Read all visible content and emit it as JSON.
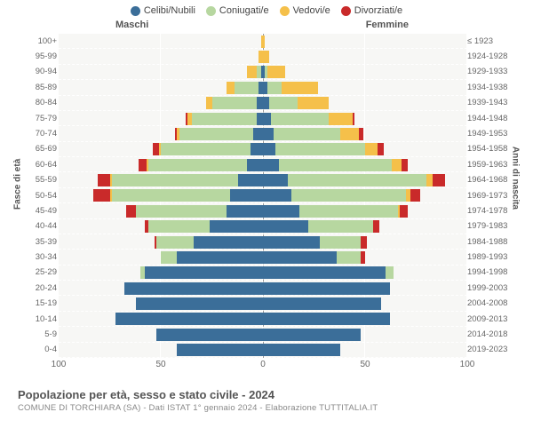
{
  "legend": [
    {
      "label": "Celibi/Nubili",
      "color": "#3b6e99"
    },
    {
      "label": "Coniugati/e",
      "color": "#b7d7a0"
    },
    {
      "label": "Vedovi/e",
      "color": "#f5c04a"
    },
    {
      "label": "Divorziati/e",
      "color": "#c92a2a"
    }
  ],
  "headers": {
    "male": "Maschi",
    "female": "Femmine"
  },
  "axes": {
    "left_title": "Fasce di età",
    "right_title": "Anni di nascita",
    "x_max": 100,
    "x_ticks": [
      100,
      50,
      0,
      50,
      100
    ]
  },
  "rows": [
    {
      "age": "100+",
      "birth": "≤ 1923",
      "m": [
        0,
        0,
        1,
        0
      ],
      "f": [
        0,
        0,
        1,
        0
      ]
    },
    {
      "age": "95-99",
      "birth": "1924-1928",
      "m": [
        0,
        0,
        2,
        0
      ],
      "f": [
        0,
        0,
        3,
        0
      ]
    },
    {
      "age": "90-94",
      "birth": "1929-1933",
      "m": [
        1,
        2,
        5,
        0
      ],
      "f": [
        1,
        1,
        9,
        0
      ]
    },
    {
      "age": "85-89",
      "birth": "1934-1938",
      "m": [
        2,
        12,
        4,
        0
      ],
      "f": [
        2,
        7,
        18,
        0
      ]
    },
    {
      "age": "80-84",
      "birth": "1939-1943",
      "m": [
        3,
        22,
        3,
        0
      ],
      "f": [
        3,
        14,
        15,
        0
      ]
    },
    {
      "age": "75-79",
      "birth": "1944-1948",
      "m": [
        3,
        32,
        2,
        1
      ],
      "f": [
        4,
        28,
        12,
        1
      ]
    },
    {
      "age": "70-74",
      "birth": "1949-1953",
      "m": [
        5,
        36,
        1,
        1
      ],
      "f": [
        5,
        33,
        9,
        2
      ]
    },
    {
      "age": "65-69",
      "birth": "1954-1958",
      "m": [
        6,
        44,
        1,
        3
      ],
      "f": [
        6,
        44,
        6,
        3
      ]
    },
    {
      "age": "60-64",
      "birth": "1959-1963",
      "m": [
        8,
        48,
        1,
        4
      ],
      "f": [
        8,
        55,
        5,
        3
      ]
    },
    {
      "age": "55-59",
      "birth": "1964-1968",
      "m": [
        12,
        62,
        1,
        6
      ],
      "f": [
        12,
        68,
        3,
        6
      ]
    },
    {
      "age": "50-54",
      "birth": "1969-1973",
      "m": [
        16,
        58,
        1,
        8
      ],
      "f": [
        14,
        56,
        2,
        5
      ]
    },
    {
      "age": "45-49",
      "birth": "1974-1978",
      "m": [
        18,
        44,
        0,
        5
      ],
      "f": [
        18,
        48,
        1,
        4
      ]
    },
    {
      "age": "40-44",
      "birth": "1979-1983",
      "m": [
        26,
        30,
        0,
        2
      ],
      "f": [
        22,
        32,
        0,
        3
      ]
    },
    {
      "age": "35-39",
      "birth": "1984-1988",
      "m": [
        34,
        18,
        0,
        1
      ],
      "f": [
        28,
        20,
        0,
        3
      ]
    },
    {
      "age": "30-34",
      "birth": "1989-1993",
      "m": [
        42,
        8,
        0,
        0
      ],
      "f": [
        36,
        12,
        0,
        2
      ]
    },
    {
      "age": "25-29",
      "birth": "1994-1998",
      "m": [
        58,
        2,
        0,
        0
      ],
      "f": [
        60,
        4,
        0,
        0
      ]
    },
    {
      "age": "20-24",
      "birth": "1999-2003",
      "m": [
        68,
        0,
        0,
        0
      ],
      "f": [
        62,
        0,
        0,
        0
      ]
    },
    {
      "age": "15-19",
      "birth": "2004-2008",
      "m": [
        62,
        0,
        0,
        0
      ],
      "f": [
        58,
        0,
        0,
        0
      ]
    },
    {
      "age": "10-14",
      "birth": "2009-2013",
      "m": [
        72,
        0,
        0,
        0
      ],
      "f": [
        62,
        0,
        0,
        0
      ]
    },
    {
      "age": "5-9",
      "birth": "2014-2018",
      "m": [
        52,
        0,
        0,
        0
      ],
      "f": [
        48,
        0,
        0,
        0
      ]
    },
    {
      "age": "0-4",
      "birth": "2019-2023",
      "m": [
        42,
        0,
        0,
        0
      ],
      "f": [
        38,
        0,
        0,
        0
      ]
    }
  ],
  "footer": {
    "title": "Popolazione per età, sesso e stato civile - 2024",
    "subtitle": "COMUNE DI TORCHIARA (SA) - Dati ISTAT 1° gennaio 2024 - Elaborazione TUTTITALIA.IT"
  },
  "style": {
    "plot_bg": "#f7f7f5",
    "grid_color": "#ffffff",
    "center_line": "#999999",
    "label_color": "#666666"
  }
}
